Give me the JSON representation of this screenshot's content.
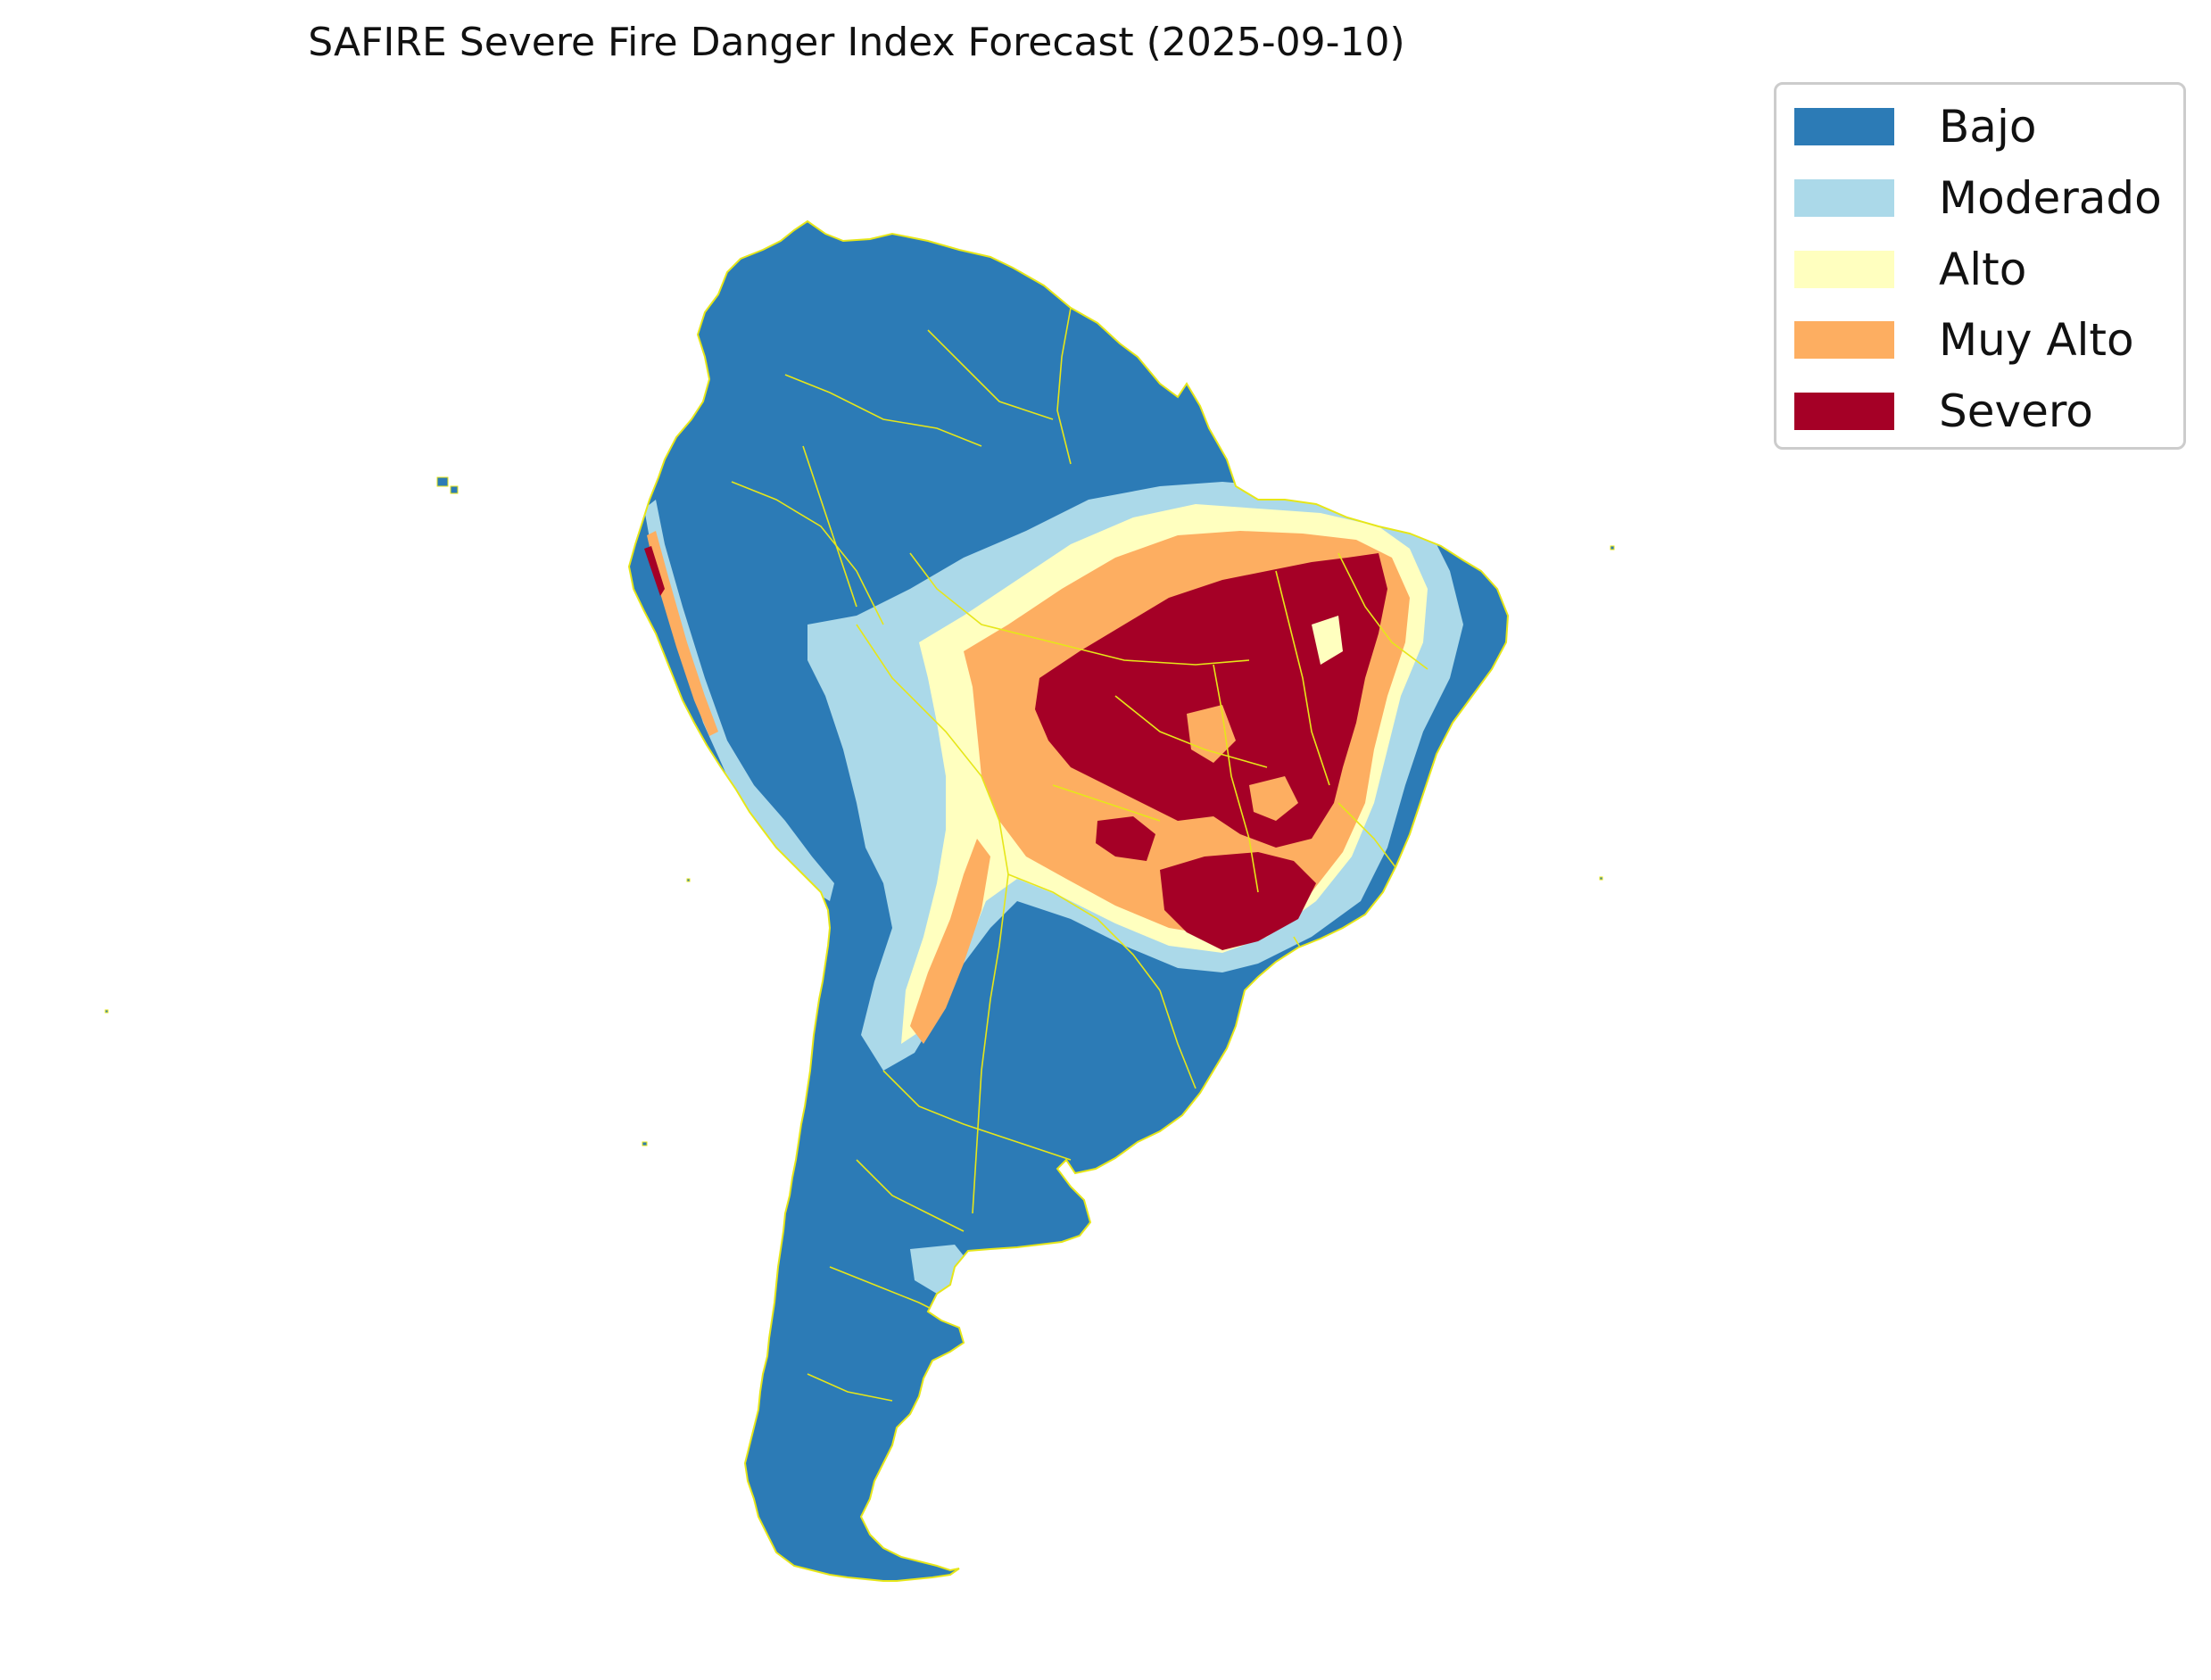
{
  "title": "SAFIRE Severe Fire Danger Index Forecast (2025-09-10)",
  "legend": {
    "items": [
      {
        "label": "Bajo",
        "color": "#2c7bb6"
      },
      {
        "label": "Moderado",
        "color": "#abd9e9"
      },
      {
        "label": "Alto",
        "color": "#ffffbf"
      },
      {
        "label": "Muy Alto",
        "color": "#fdae61"
      },
      {
        "label": "Severo",
        "color": "#a50026"
      }
    ]
  },
  "map": {
    "region": "South America",
    "boundary_color": "#e6e619"
  }
}
